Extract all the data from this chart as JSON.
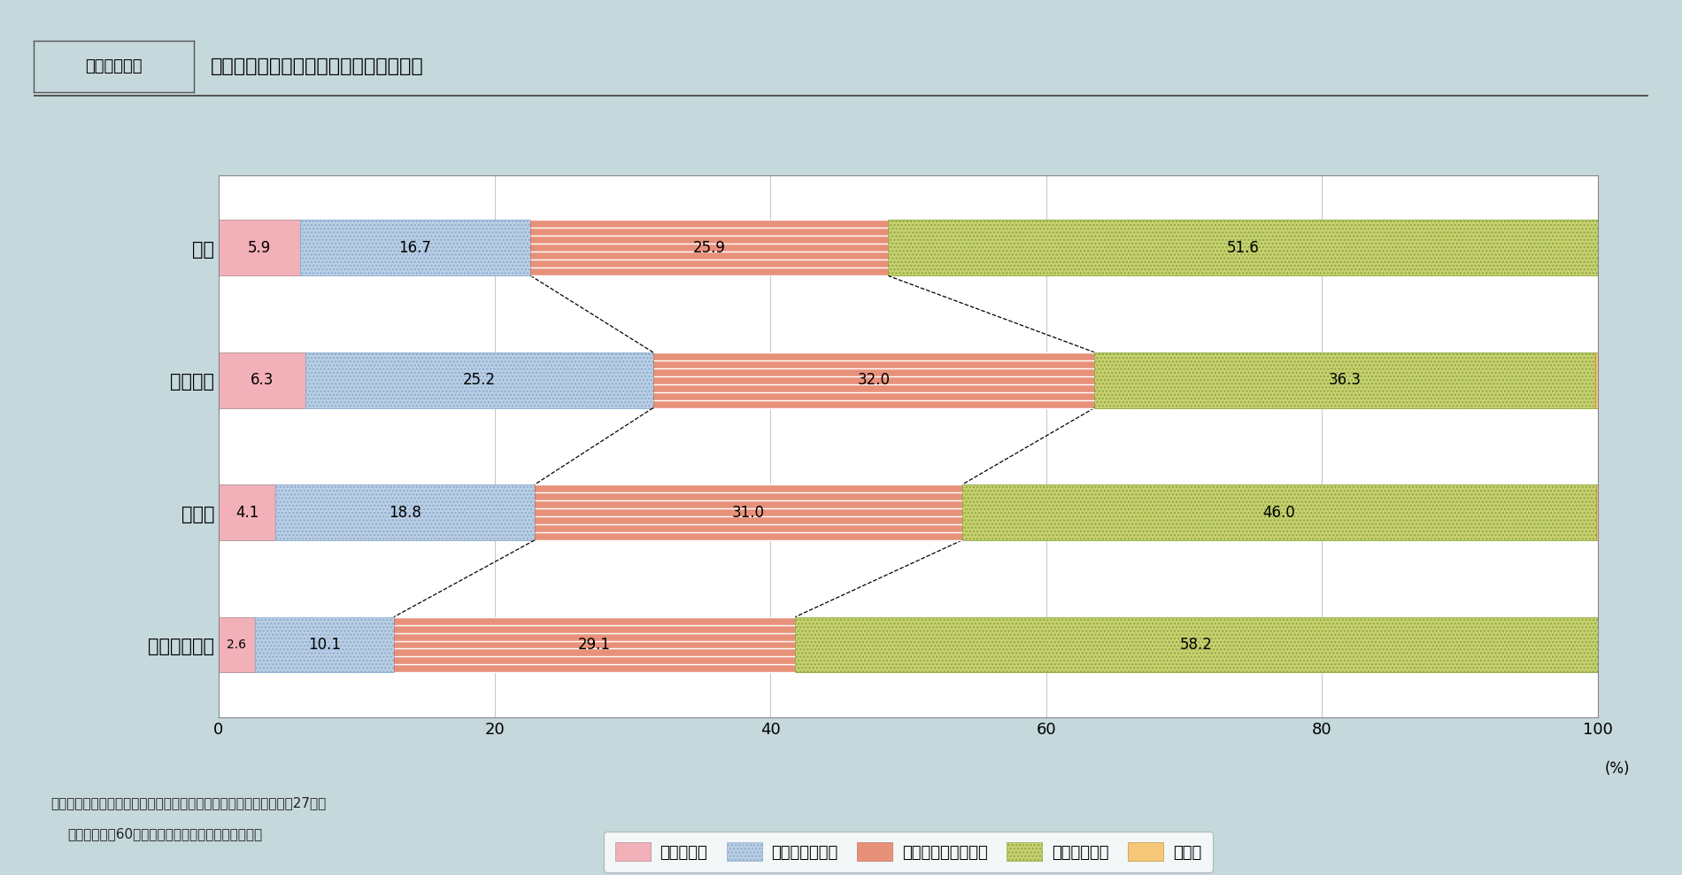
{
  "title_label": "図１－３－７",
  "title_text": "日々の暮らしで経済的に困ることの有無",
  "countries": [
    "日本",
    "アメリカ",
    "ドイツ",
    "スウェーデン"
  ],
  "categories": [
    "困っている",
    "少し困っている",
    "あまり困っていない",
    "困っていない",
    "無回答"
  ],
  "data": [
    [
      5.9,
      16.7,
      25.9,
      51.6,
      0.0
    ],
    [
      6.3,
      25.2,
      32.0,
      36.3,
      0.2
    ],
    [
      4.1,
      18.8,
      31.0,
      46.0,
      0.2
    ],
    [
      2.6,
      10.1,
      29.1,
      58.2,
      0.0
    ]
  ],
  "seg_colors": [
    "#f2b0b8",
    "#bacee4",
    "#e8917a",
    "#c8d070",
    "#f5c878"
  ],
  "seg_ec": [
    "#b09090",
    "#8aacce",
    "#c07060",
    "#8aaa40",
    "#c09040"
  ],
  "seg_hatches": [
    null,
    "....",
    null,
    "....",
    null
  ],
  "bg_color": "#c5d8dc",
  "plot_bg": "#ffffff",
  "source_text1": "資料：内閣府「高齢者の生活と意識に関する国際比較調査」（平成27年）",
  "source_text2": "（注）対象は60歳以上の男女（施設入所者は除く）",
  "figsize": [
    19.0,
    9.88
  ]
}
